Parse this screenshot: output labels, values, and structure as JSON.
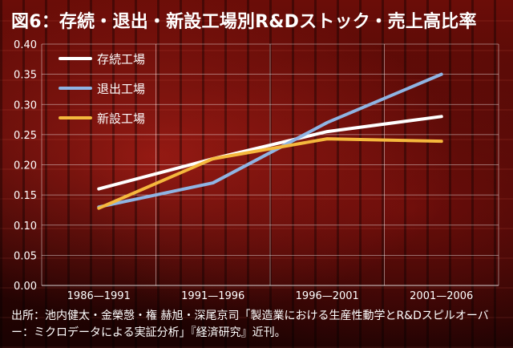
{
  "title": "図6：存続・退出・新設工場別R&Dストック・売上高比率",
  "source": "出所：池内健太・金榮愨・権 赫旭・深尾京司「製造業における生産性動学とR&Dスピルオーバー：ミクロデータによる実証分析」『経済研究』近刊。",
  "chart_data": {
    "type": "line",
    "title": "図6：存続・退出・新設工場別R&Dストック・売上高比率",
    "xlabel": "",
    "ylabel": "",
    "categories": [
      "1986—1991",
      "1991—1996",
      "1996—2001",
      "2001—2006"
    ],
    "ylim": [
      0,
      0.4
    ],
    "yticks": [
      "0.00",
      "0.05",
      "0.10",
      "0.15",
      "0.20",
      "0.25",
      "0.30",
      "0.35",
      "0.40"
    ],
    "grid": true,
    "legend": "top-left",
    "series": [
      {
        "name": "存続工場",
        "color": "#ffffff",
        "values": [
          0.16,
          0.21,
          0.255,
          0.28
        ]
      },
      {
        "name": "退出工場",
        "color": "#8fb4e3",
        "values": [
          0.13,
          0.17,
          0.27,
          0.35
        ]
      },
      {
        "name": "新設工場",
        "color": "#f5b83d",
        "values": [
          0.128,
          0.21,
          0.243,
          0.239
        ]
      }
    ]
  }
}
